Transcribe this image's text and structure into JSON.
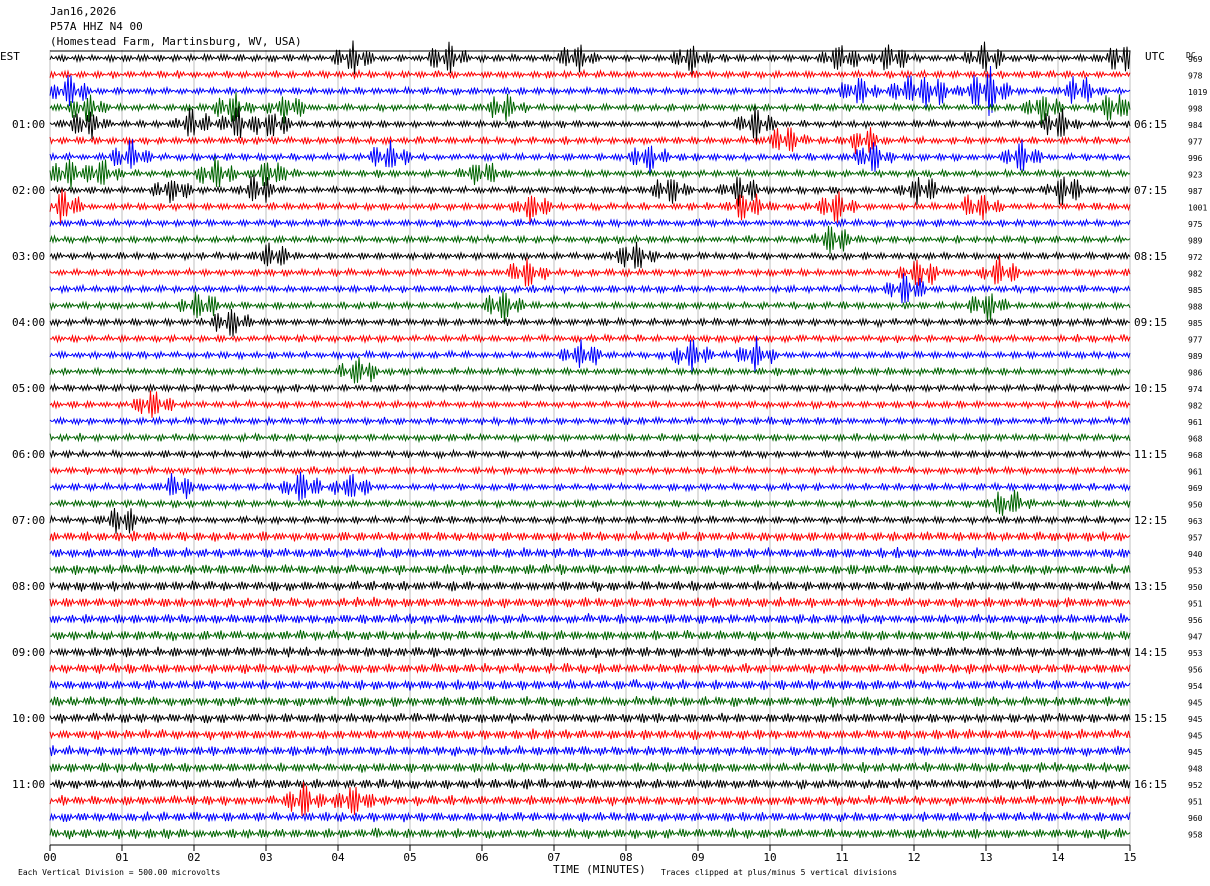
{
  "header": {
    "date": "Jan16,2026",
    "station": "P57A HHZ N4 00",
    "location": "(Homestead Farm, Martinsburg, WV, USA)"
  },
  "left_axis_title": "EST",
  "right_axis_title": "UTC",
  "dc_title": "DC",
  "footer": {
    "scale_note": "Each Vertical Division =  500.00 microvolts",
    "xlabel": "TIME (MINUTES)",
    "clip_note": "Traces clipped at plus/minus 5 vertical divisions"
  },
  "colors": {
    "trace_cycle": [
      "#000000",
      "#ff0000",
      "#0000ff",
      "#006400"
    ],
    "grid": "#000000"
  },
  "chart_data": {
    "type": "line",
    "title": "P57A HHZ N4 00",
    "xlabel": "TIME (MINUTES)",
    "xlim": [
      0,
      15
    ],
    "x_ticks": [
      "00",
      "01",
      "02",
      "03",
      "04",
      "05",
      "06",
      "07",
      "08",
      "09",
      "10",
      "11",
      "12",
      "13",
      "14",
      "15"
    ],
    "rows": 48,
    "left_hour_labels": [
      "",
      "01:00",
      "02:00",
      "03:00",
      "04:00",
      "05:00",
      "06:00",
      "07:00",
      "08:00",
      "09:00",
      "10:00",
      "11:00"
    ],
    "right_hour_labels": [
      "",
      "06:15",
      "07:15",
      "08:15",
      "09:15",
      "10:15",
      "11:15",
      "12:15",
      "13:15",
      "14:15",
      "15:15",
      "16:15"
    ],
    "dc_offsets": [
      969,
      978,
      1019,
      998,
      984,
      977,
      996,
      923,
      987,
      1001,
      975,
      989,
      972,
      982,
      985,
      988,
      985,
      977,
      989,
      986,
      974,
      982,
      961,
      968,
      968,
      961,
      969,
      950,
      963,
      957,
      940,
      953,
      950,
      951,
      956,
      947,
      953,
      956,
      954,
      945,
      945,
      945,
      945,
      948,
      952,
      951,
      960,
      958
    ],
    "bursts": [
      {
        "row": 0,
        "t": [
          4.2,
          5.5,
          7.3,
          8.9,
          11.0,
          11.7,
          13.0,
          14.9
        ]
      },
      {
        "row": 2,
        "t": [
          0.3,
          11.2,
          11.9,
          12.3,
          12.9,
          13.1,
          14.3
        ]
      },
      {
        "row": 3,
        "t": [
          0.5,
          2.5,
          3.3,
          6.3,
          13.8,
          14.8
        ]
      },
      {
        "row": 4,
        "t": [
          0.5,
          2.0,
          2.6,
          3.1,
          9.8,
          14.0
        ]
      },
      {
        "row": 5,
        "t": [
          10.2,
          11.3
        ]
      },
      {
        "row": 6,
        "t": [
          1.1,
          4.7,
          8.3,
          11.4,
          13.5
        ]
      },
      {
        "row": 7,
        "t": [
          0.2,
          0.7,
          2.3,
          3.1,
          6.0
        ]
      },
      {
        "row": 8,
        "t": [
          1.7,
          2.9,
          8.6,
          9.6,
          12.1,
          14.1
        ]
      },
      {
        "row": 9,
        "t": [
          0.2,
          6.7,
          9.7,
          10.9,
          12.9
        ]
      },
      {
        "row": 11,
        "t": [
          10.9
        ]
      },
      {
        "row": 12,
        "t": [
          3.1,
          8.1
        ]
      },
      {
        "row": 13,
        "t": [
          6.6,
          12.1,
          13.2
        ]
      },
      {
        "row": 14,
        "t": [
          11.9
        ]
      },
      {
        "row": 15,
        "t": [
          2.1,
          6.3,
          13.0
        ]
      },
      {
        "row": 16,
        "t": [
          2.5
        ]
      },
      {
        "row": 18,
        "t": [
          7.4,
          8.9,
          9.8
        ]
      },
      {
        "row": 19,
        "t": [
          4.3
        ]
      },
      {
        "row": 21,
        "t": [
          1.4
        ]
      },
      {
        "row": 26,
        "t": [
          1.8,
          3.5,
          4.2
        ]
      },
      {
        "row": 27,
        "t": [
          13.3
        ]
      },
      {
        "row": 28,
        "t": [
          1.0
        ]
      },
      {
        "row": 45,
        "t": [
          3.5,
          4.2
        ]
      }
    ]
  }
}
